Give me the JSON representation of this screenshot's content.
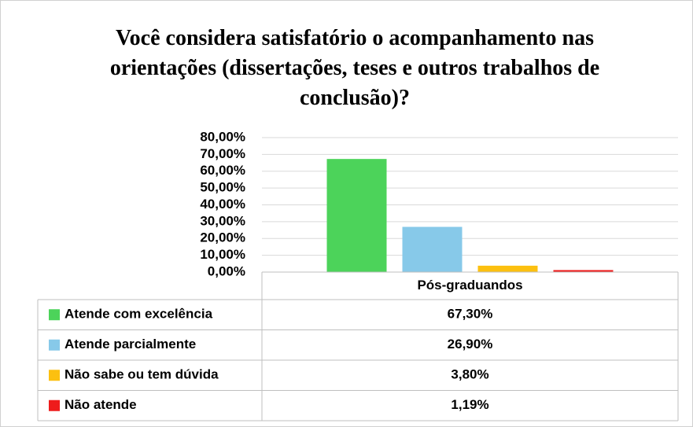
{
  "chart_data": {
    "type": "bar",
    "title": "Você considera satisfatório o acompanhamento nas orientações (dissertações, teses e outros trabalhos de conclusão)?",
    "categories": [
      "Pós-graduandos"
    ],
    "series": [
      {
        "name": "Atende com excelência",
        "color": "#4cd35a",
        "values": [
          67.3
        ],
        "value_labels": [
          "67,30%"
        ]
      },
      {
        "name": "Atende parcialmente",
        "color": "#87c9e9",
        "values": [
          26.9
        ],
        "value_labels": [
          "26,90%"
        ]
      },
      {
        "name": "Não sabe ou tem dúvida",
        "color": "#fcc010",
        "values": [
          3.8
        ],
        "value_labels": [
          "3,80%"
        ]
      },
      {
        "name": "Não atende",
        "color": "#ee1c1c",
        "values": [
          1.19
        ],
        "value_labels": [
          "1,19%"
        ]
      }
    ],
    "ylim": [
      0,
      80
    ],
    "yticks": [
      {
        "value": 0,
        "label": "0,00%"
      },
      {
        "value": 10,
        "label": "10,00%"
      },
      {
        "value": 20,
        "label": "20,00%"
      },
      {
        "value": 30,
        "label": "30,00%"
      },
      {
        "value": 40,
        "label": "40,00%"
      },
      {
        "value": 50,
        "label": "50,00%"
      },
      {
        "value": 60,
        "label": "60,00%"
      },
      {
        "value": 70,
        "label": "70,00%"
      },
      {
        "value": 80,
        "label": "80,00%"
      }
    ],
    "grid": true
  }
}
